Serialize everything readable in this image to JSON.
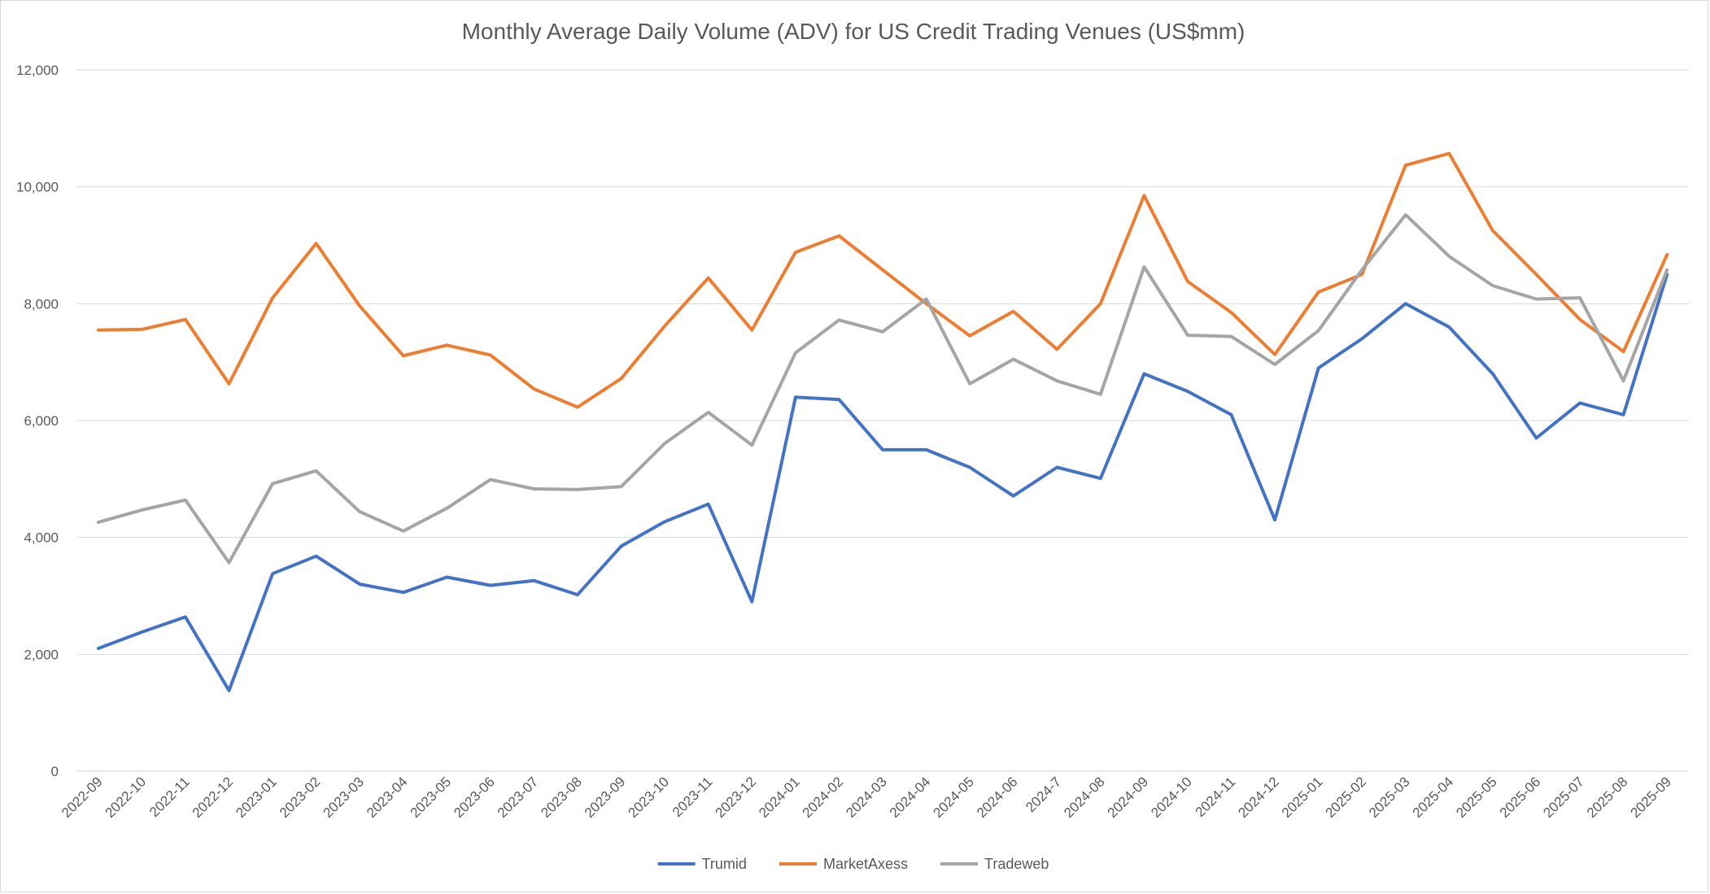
{
  "chart_data": {
    "type": "line",
    "title": "Monthly Average Daily Volume (ADV) for US Credit Trading Venues (US$mm)",
    "xlabel": "",
    "ylabel": "",
    "ylim": [
      0,
      12000
    ],
    "yticks": [
      0,
      2000,
      4000,
      6000,
      8000,
      10000,
      12000
    ],
    "ytick_labels": [
      "0",
      "2,000",
      "4,000",
      "6,000",
      "8,000",
      "10,000",
      "12,000"
    ],
    "grid": "horizontal",
    "legend_position": "bottom",
    "categories": [
      "2022-09",
      "2022-10",
      "2022-11",
      "2022-12",
      "2023-01",
      "2023-02",
      "2023-03",
      "2023-04",
      "2023-05",
      "2023-06",
      "2023-07",
      "2023-08",
      "2023-09",
      "2023-10",
      "2023-11",
      "2023-12",
      "2024-01",
      "2024-02",
      "2024-03",
      "2024-04",
      "2024-05",
      "2024-06",
      "2024-7",
      "2024-08",
      "2024-09",
      "2024-10",
      "2024-11",
      "2024-12",
      "2025-01",
      "2025-02",
      "2025-03",
      "2025-04",
      "2025-05",
      "2025-06",
      "2025-07",
      "2025-08",
      "2025-09"
    ],
    "series": [
      {
        "name": "Trumid",
        "color": "#4472c4",
        "values": [
          2100,
          2380,
          2640,
          1380,
          3380,
          3680,
          3200,
          3060,
          3320,
          3180,
          3260,
          3020,
          3850,
          4270,
          4570,
          2900,
          6400,
          6360,
          5500,
          5500,
          5200,
          4710,
          5200,
          5010,
          6800,
          6500,
          6100,
          4300,
          6900,
          7400,
          8000,
          7600,
          6800,
          5700,
          6300,
          6100,
          8500
        ]
      },
      {
        "name": "MarketAxess",
        "color": "#ed7d31",
        "values": [
          7550,
          7560,
          7730,
          6630,
          8100,
          9030,
          7960,
          7110,
          7290,
          7120,
          6540,
          6230,
          6720,
          7620,
          8440,
          7550,
          8880,
          9160,
          8580,
          8000,
          7450,
          7870,
          7220,
          8000,
          9850,
          8380,
          7850,
          7130,
          8200,
          8500,
          10370,
          10570,
          9250,
          8500,
          7730,
          7180,
          8840
        ]
      },
      {
        "name": "Tradeweb",
        "color": "#a5a5a5",
        "values": [
          4260,
          4470,
          4640,
          3570,
          4920,
          5140,
          4440,
          4110,
          4500,
          4990,
          4830,
          4820,
          4870,
          5610,
          6140,
          5580,
          7160,
          7720,
          7520,
          8080,
          6630,
          7050,
          6680,
          6450,
          8630,
          7460,
          7440,
          6960,
          7540,
          8580,
          9520,
          8810,
          8310,
          8080,
          8100,
          6680,
          8580
        ]
      }
    ]
  }
}
